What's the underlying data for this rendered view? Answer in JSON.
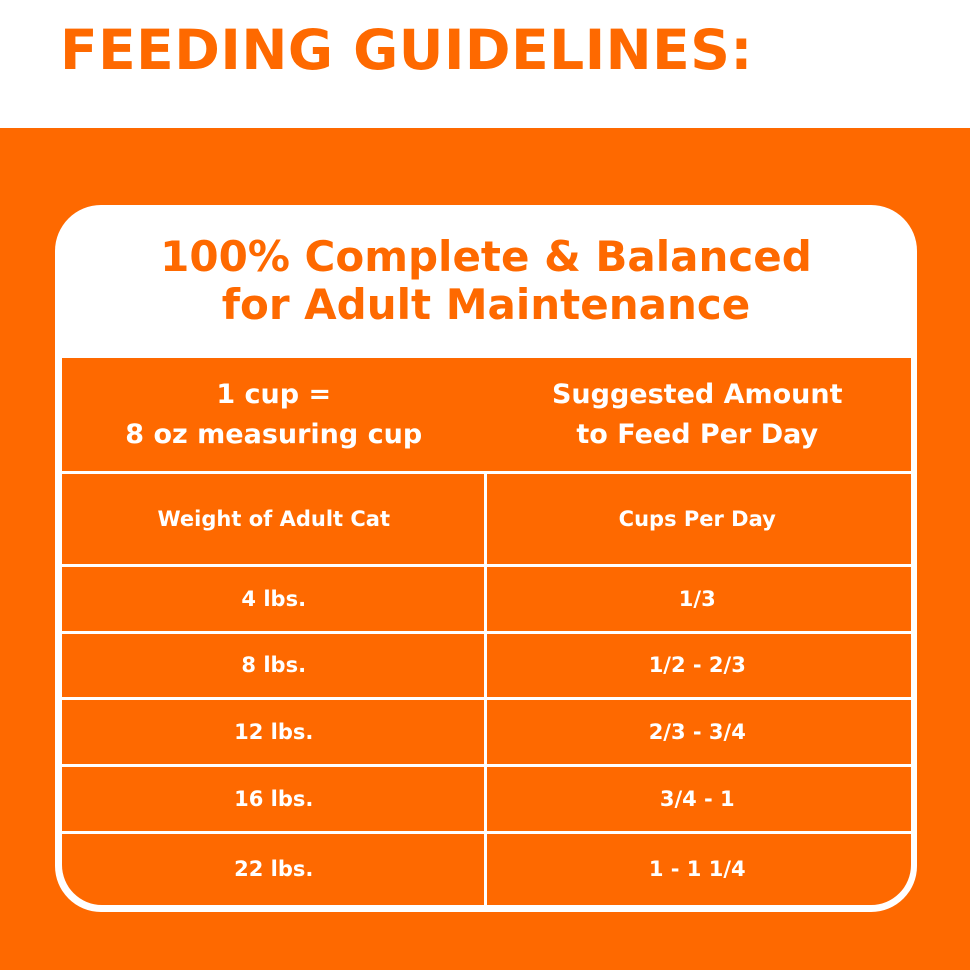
{
  "header": {
    "title": "FEEDING GUIDELINES:"
  },
  "card": {
    "title": [
      "100% Complete & Balanced",
      "for Adult Maintenance"
    ]
  },
  "table": {
    "header": [
      [
        "1 cup =",
        "8 oz measuring cup"
      ],
      [
        "Suggested Amount",
        "to Feed Per Day"
      ]
    ],
    "columns": [
      "Weight of Adult Cat",
      "Cups Per Day"
    ],
    "rows": [
      [
        "4 lbs.",
        "1/3"
      ],
      [
        "8 lbs.",
        "1/2 - 2/3"
      ],
      [
        "12 lbs.",
        "2/3 - 3/4"
      ],
      [
        "16 lbs.",
        "3/4 - 1"
      ],
      [
        "22 lbs.",
        "1 - 1 1/4"
      ]
    ]
  }
}
